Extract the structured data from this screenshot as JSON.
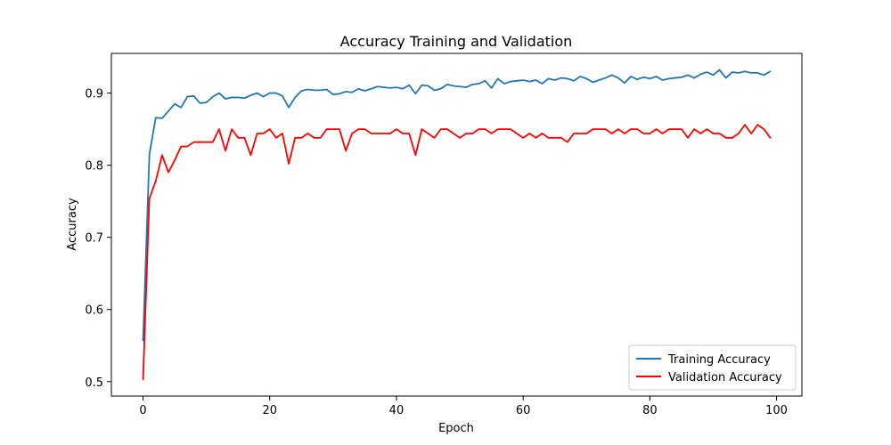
{
  "chart_data": {
    "type": "line",
    "title": "Accuracy Training and Validation",
    "xlabel": "Epoch",
    "ylabel": "Accuracy",
    "xlim": [
      -5,
      104
    ],
    "ylim": [
      0.48,
      0.955
    ],
    "xticks": [
      0,
      20,
      40,
      60,
      80,
      100
    ],
    "yticks": [
      0.5,
      0.6,
      0.7,
      0.8,
      0.9
    ],
    "grid": false,
    "legend_position": "lower-right",
    "series": [
      {
        "name": "Training Accuracy",
        "color": "#1f77b4",
        "x": [
          0,
          1,
          2,
          3,
          4,
          5,
          6,
          7,
          8,
          9,
          10,
          11,
          12,
          13,
          14,
          15,
          16,
          17,
          18,
          19,
          20,
          21,
          22,
          23,
          24,
          25,
          26,
          27,
          28,
          29,
          30,
          31,
          32,
          33,
          34,
          35,
          36,
          37,
          38,
          39,
          40,
          41,
          42,
          43,
          44,
          45,
          46,
          47,
          48,
          49,
          50,
          51,
          52,
          53,
          54,
          55,
          56,
          57,
          58,
          59,
          60,
          61,
          62,
          63,
          64,
          65,
          66,
          67,
          68,
          69,
          70,
          71,
          72,
          73,
          74,
          75,
          76,
          77,
          78,
          79,
          80,
          81,
          82,
          83,
          84,
          85,
          86,
          87,
          88,
          89,
          90,
          91,
          92,
          93,
          94,
          95,
          96,
          97,
          98,
          99
        ],
        "values": [
          0.557,
          0.815,
          0.866,
          0.865,
          0.875,
          0.885,
          0.88,
          0.895,
          0.896,
          0.886,
          0.887,
          0.895,
          0.9,
          0.892,
          0.894,
          0.894,
          0.893,
          0.897,
          0.9,
          0.895,
          0.9,
          0.9,
          0.896,
          0.88,
          0.894,
          0.903,
          0.905,
          0.904,
          0.904,
          0.905,
          0.898,
          0.899,
          0.902,
          0.901,
          0.906,
          0.903,
          0.906,
          0.909,
          0.908,
          0.907,
          0.908,
          0.906,
          0.911,
          0.899,
          0.911,
          0.91,
          0.904,
          0.906,
          0.912,
          0.91,
          0.909,
          0.908,
          0.912,
          0.913,
          0.917,
          0.907,
          0.92,
          0.913,
          0.916,
          0.917,
          0.918,
          0.916,
          0.918,
          0.913,
          0.92,
          0.918,
          0.921,
          0.92,
          0.917,
          0.923,
          0.92,
          0.915,
          0.918,
          0.921,
          0.925,
          0.921,
          0.914,
          0.923,
          0.919,
          0.922,
          0.92,
          0.923,
          0.918,
          0.92,
          0.921,
          0.922,
          0.925,
          0.921,
          0.926,
          0.929,
          0.925,
          0.932,
          0.921,
          0.929,
          0.928,
          0.93,
          0.928,
          0.928,
          0.925,
          0.93
        ]
      },
      {
        "name": "Validation Accuracy",
        "color": "#ff0000",
        "x": [
          0,
          1,
          2,
          3,
          4,
          5,
          6,
          7,
          8,
          9,
          10,
          11,
          12,
          13,
          14,
          15,
          16,
          17,
          18,
          19,
          20,
          21,
          22,
          23,
          24,
          25,
          26,
          27,
          28,
          29,
          30,
          31,
          32,
          33,
          34,
          35,
          36,
          37,
          38,
          39,
          40,
          41,
          42,
          43,
          44,
          45,
          46,
          47,
          48,
          49,
          50,
          51,
          52,
          53,
          54,
          55,
          56,
          57,
          58,
          59,
          60,
          61,
          62,
          63,
          64,
          65,
          66,
          67,
          68,
          69,
          70,
          71,
          72,
          73,
          74,
          75,
          76,
          77,
          78,
          79,
          80,
          81,
          82,
          83,
          84,
          85,
          86,
          87,
          88,
          89,
          90,
          91,
          92,
          93,
          94,
          95,
          96,
          97,
          98,
          99
        ],
        "values": [
          0.503,
          0.754,
          0.778,
          0.814,
          0.79,
          0.807,
          0.826,
          0.826,
          0.832,
          0.832,
          0.832,
          0.832,
          0.85,
          0.82,
          0.85,
          0.838,
          0.838,
          0.814,
          0.844,
          0.844,
          0.85,
          0.838,
          0.844,
          0.802,
          0.838,
          0.838,
          0.844,
          0.838,
          0.838,
          0.85,
          0.85,
          0.85,
          0.82,
          0.844,
          0.85,
          0.85,
          0.844,
          0.844,
          0.844,
          0.844,
          0.85,
          0.844,
          0.844,
          0.814,
          0.85,
          0.844,
          0.838,
          0.85,
          0.85,
          0.844,
          0.838,
          0.844,
          0.844,
          0.85,
          0.85,
          0.844,
          0.85,
          0.85,
          0.85,
          0.844,
          0.838,
          0.844,
          0.838,
          0.844,
          0.838,
          0.838,
          0.838,
          0.832,
          0.844,
          0.844,
          0.844,
          0.85,
          0.85,
          0.85,
          0.844,
          0.85,
          0.844,
          0.85,
          0.85,
          0.844,
          0.844,
          0.85,
          0.844,
          0.85,
          0.85,
          0.85,
          0.838,
          0.85,
          0.844,
          0.85,
          0.844,
          0.844,
          0.838,
          0.838,
          0.844,
          0.856,
          0.844,
          0.856,
          0.85,
          0.838
        ]
      }
    ]
  }
}
